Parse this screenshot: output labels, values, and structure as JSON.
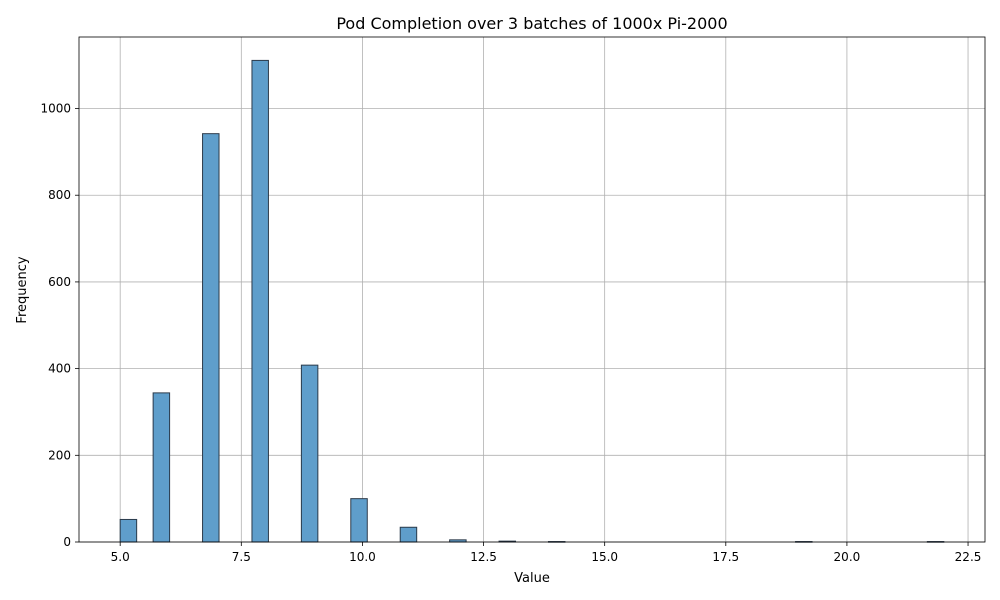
{
  "chart_data": {
    "type": "bar",
    "title": "Pod Completion over 3 batches of 1000x Pi-2000",
    "xlabel": "Value",
    "ylabel": "Frequency",
    "xlim": [
      4.15,
      22.85
    ],
    "ylim": [
      0,
      1165
    ],
    "xticks": [
      5.0,
      7.5,
      10.0,
      12.5,
      15.0,
      17.5,
      20.0,
      22.5
    ],
    "xtick_labels": [
      "5.0",
      "7.5",
      "10.0",
      "12.5",
      "15.0",
      "17.5",
      "20.0",
      "22.5"
    ],
    "yticks": [
      0,
      200,
      400,
      600,
      800,
      1000
    ],
    "ytick_labels": [
      "0",
      "200",
      "400",
      "600",
      "800",
      "1000"
    ],
    "grid": true,
    "bin_width": 0.34,
    "bar_color": "#5f9ecb",
    "edge_color": "#2b3a4a",
    "bins": [
      {
        "start": 5.0,
        "value": 52
      },
      {
        "start": 5.68,
        "value": 344
      },
      {
        "start": 6.7,
        "value": 942
      },
      {
        "start": 7.72,
        "value": 1111
      },
      {
        "start": 8.74,
        "value": 408
      },
      {
        "start": 9.76,
        "value": 100
      },
      {
        "start": 10.78,
        "value": 34
      },
      {
        "start": 11.8,
        "value": 5
      },
      {
        "start": 12.82,
        "value": 2
      },
      {
        "start": 13.84,
        "value": 1
      },
      {
        "start": 18.94,
        "value": 1
      },
      {
        "start": 21.66,
        "value": 1
      }
    ]
  }
}
